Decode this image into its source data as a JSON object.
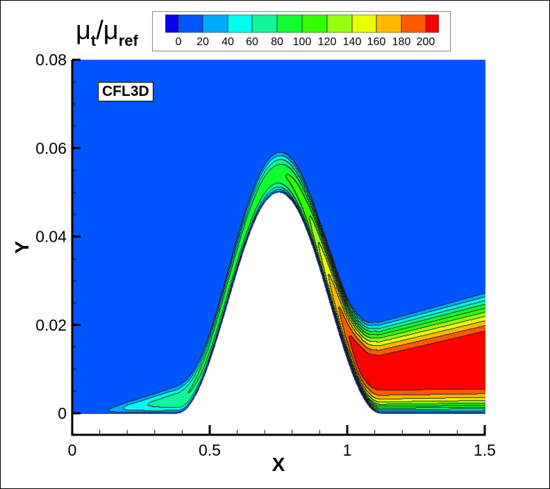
{
  "chart_data": {
    "type": "contour",
    "xlabel": "X",
    "ylabel": "Y",
    "xlim": [
      0,
      1.5
    ],
    "ylim": [
      -0.005,
      0.08
    ],
    "xticks": [
      "0",
      "0.5",
      "1",
      "1.5"
    ],
    "xtick_values": [
      0,
      0.5,
      1,
      1.5
    ],
    "yticks": [
      "0",
      "0.02",
      "0.04",
      "0.06",
      "0.08"
    ],
    "ytick_values": [
      0,
      0.02,
      0.04,
      0.06,
      0.08
    ],
    "grid": false,
    "annotation": "CFL3D",
    "colorbar": {
      "title": {
        "symbol": "μ",
        "num_sub": "t",
        "slash": "/",
        "den_sub": "ref"
      },
      "placement": "top",
      "levels": [
        "0",
        "20",
        "40",
        "60",
        "80",
        "100",
        "120",
        "140",
        "160",
        "180",
        "200"
      ],
      "colors": [
        "#0a00f0",
        "#0055ff",
        "#00aaff",
        "#00ffee",
        "#10f598",
        "#10ff30",
        "#34ff00",
        "#98ff10",
        "#eaff00",
        "#ffba00",
        "#ff5a00",
        "#ff0000"
      ]
    }
  }
}
